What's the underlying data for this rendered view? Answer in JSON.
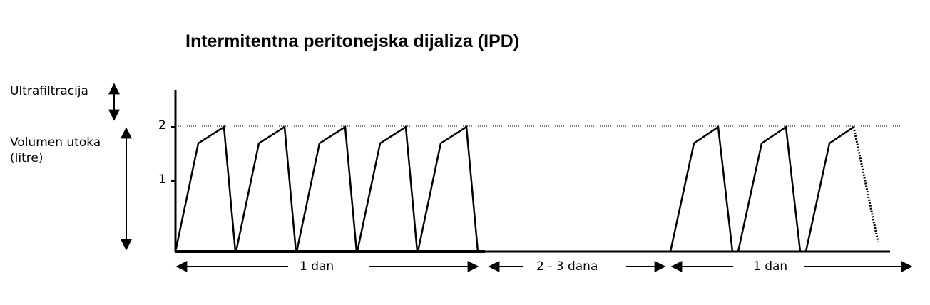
{
  "title": "Intermitentna peritonejska dijaliza (IPD)",
  "side_labels": {
    "ultrafiltration": "Ultrafiltracija",
    "volume_line1": "Volumen utoka",
    "volume_line2": "(litre)"
  },
  "y_ticks": [
    "2",
    "1"
  ],
  "periods": [
    {
      "label": "1  dan"
    },
    {
      "label": "2 - 3 dana"
    },
    {
      "label": "1 dan"
    }
  ],
  "chart_data": {
    "type": "line",
    "ylabel": "Volumen utoka (litre)",
    "ylim": [
      0,
      2.6
    ],
    "reference_line": 2,
    "cycles": [
      {
        "period": "1  dan",
        "count": 5,
        "fill_to": 2,
        "peak": 2.3,
        "drain_to": 0
      },
      {
        "period": "2 - 3 dana",
        "count": 0
      },
      {
        "period": "1 dan",
        "count": 3,
        "fill_to": 2,
        "peak": 2.3,
        "drain_to": 0
      }
    ]
  },
  "colors": {
    "line": "#000000",
    "background": "#ffffff"
  }
}
